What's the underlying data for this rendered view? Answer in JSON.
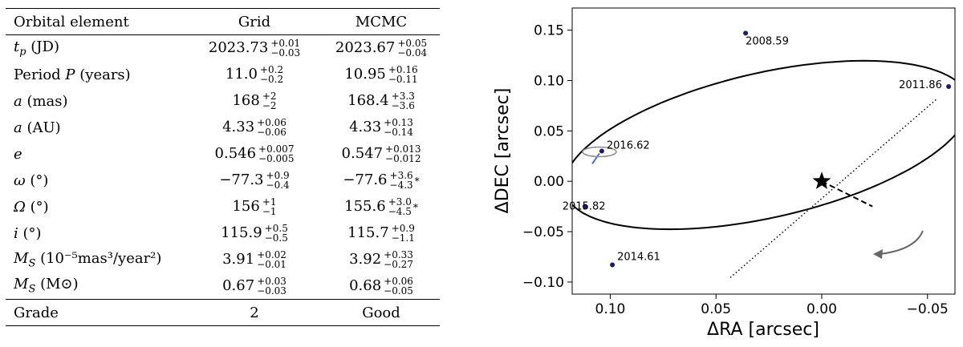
{
  "table": {
    "headers": {
      "element": "Orbital element",
      "grid": "Grid",
      "mcmc": "MCMC"
    },
    "rows": [
      {
        "label": "t_p (JD)",
        "grid": {
          "value": "2023.73",
          "plus": "+0.01",
          "minus": "−0.03"
        },
        "mcmc": {
          "value": "2023.67",
          "plus": "+0.05",
          "minus": "−0.04"
        }
      },
      {
        "label": "Period P (years)",
        "grid": {
          "value": "11.0",
          "plus": "+0.2",
          "minus": "−0.2"
        },
        "mcmc": {
          "value": "10.95",
          "plus": "+0.16",
          "minus": "−0.11"
        }
      },
      {
        "label": "a (mas)",
        "grid": {
          "value": "168",
          "plus": "+2",
          "minus": "−2"
        },
        "mcmc": {
          "value": "168.4",
          "plus": "+3.3",
          "minus": "−3.6"
        }
      },
      {
        "label": "a (AU)",
        "grid": {
          "value": "4.33",
          "plus": "+0.06",
          "minus": "−0.06"
        },
        "mcmc": {
          "value": "4.33",
          "plus": "+0.13",
          "minus": "−0.14"
        }
      },
      {
        "label": "e",
        "grid": {
          "value": "0.546",
          "plus": "+0.007",
          "minus": "−0.005"
        },
        "mcmc": {
          "value": "0.547",
          "plus": "+0.013",
          "minus": "−0.012"
        }
      },
      {
        "label": "ω (°)",
        "grid": {
          "value": "−77.3",
          "plus": "+0.9",
          "minus": "−0.4"
        },
        "mcmc": {
          "value": "−77.6",
          "plus": "+3.6",
          "minus": "−4.3",
          "flag": "*"
        }
      },
      {
        "label": "Ω (°)",
        "grid": {
          "value": "156",
          "plus": "+1",
          "minus": "−1"
        },
        "mcmc": {
          "value": "155.6",
          "plus": "+3.0",
          "minus": "−4.5",
          "flag": "*"
        }
      },
      {
        "label": "i (°)",
        "grid": {
          "value": "115.9",
          "plus": "+0.5",
          "minus": "−0.5"
        },
        "mcmc": {
          "value": "115.7",
          "plus": "+0.9",
          "minus": "−1.1"
        }
      },
      {
        "label": "M_S (10⁻⁵mas³/year²)",
        "grid": {
          "value": "3.91",
          "plus": "+0.02",
          "minus": "−0.01"
        },
        "mcmc": {
          "value": "3.92",
          "plus": "+0.33",
          "minus": "−0.27"
        }
      },
      {
        "label": "M_S (M⊙)",
        "grid": {
          "value": "0.67",
          "plus": "+0.03",
          "minus": "−0.03"
        },
        "mcmc": {
          "value": "0.68",
          "plus": "+0.06",
          "minus": "−0.05"
        }
      }
    ],
    "footer": {
      "label": "Grade",
      "grid": "2",
      "mcmc": "Good"
    }
  },
  "chart_data": {
    "type": "scatter",
    "title": "",
    "xlabel": "ΔRA [arcsec]",
    "ylabel": "ΔDEC [arcsec]",
    "xlim": [
      0.118,
      -0.063
    ],
    "ylim": [
      -0.112,
      0.172
    ],
    "xticks": [
      0.1,
      0.05,
      0.0,
      -0.05
    ],
    "xtick_labels": [
      "0.10",
      "0.05",
      "0.00",
      "−0.05"
    ],
    "yticks": [
      0.15,
      0.1,
      0.05,
      0.0,
      -0.05,
      -0.1
    ],
    "ytick_labels": [
      "0.15",
      "0.10",
      "0.05",
      "0.00",
      "−0.05",
      "−0.10"
    ],
    "points": [
      {
        "label": "2008.59",
        "x": 0.036,
        "y": 0.147
      },
      {
        "label": "2011.86",
        "x": -0.06,
        "y": 0.094
      },
      {
        "label": "2016.62",
        "x": 0.104,
        "y": 0.03
      },
      {
        "label": "2015.82",
        "x": 0.112,
        "y": -0.025
      },
      {
        "label": "2014.61",
        "x": 0.099,
        "y": -0.083
      }
    ],
    "star": {
      "x": 0.0,
      "y": 0.0
    },
    "ellipse": {
      "cx": 0.026,
      "cy": 0.036,
      "a": 0.11,
      "b": 0.064,
      "angle_deg": 37
    },
    "line_of_nodes": {
      "x1": -0.054,
      "y1": 0.081,
      "x2": 0.044,
      "y2": -0.097
    },
    "periastron": {
      "x2": -0.024,
      "y2": -0.025
    },
    "colors": {
      "orbit": "#000000",
      "points": "#191970",
      "residual": "#3b5fd9",
      "error_ellipse": "#8c8c8c",
      "direction_arrow": "#666666"
    }
  }
}
